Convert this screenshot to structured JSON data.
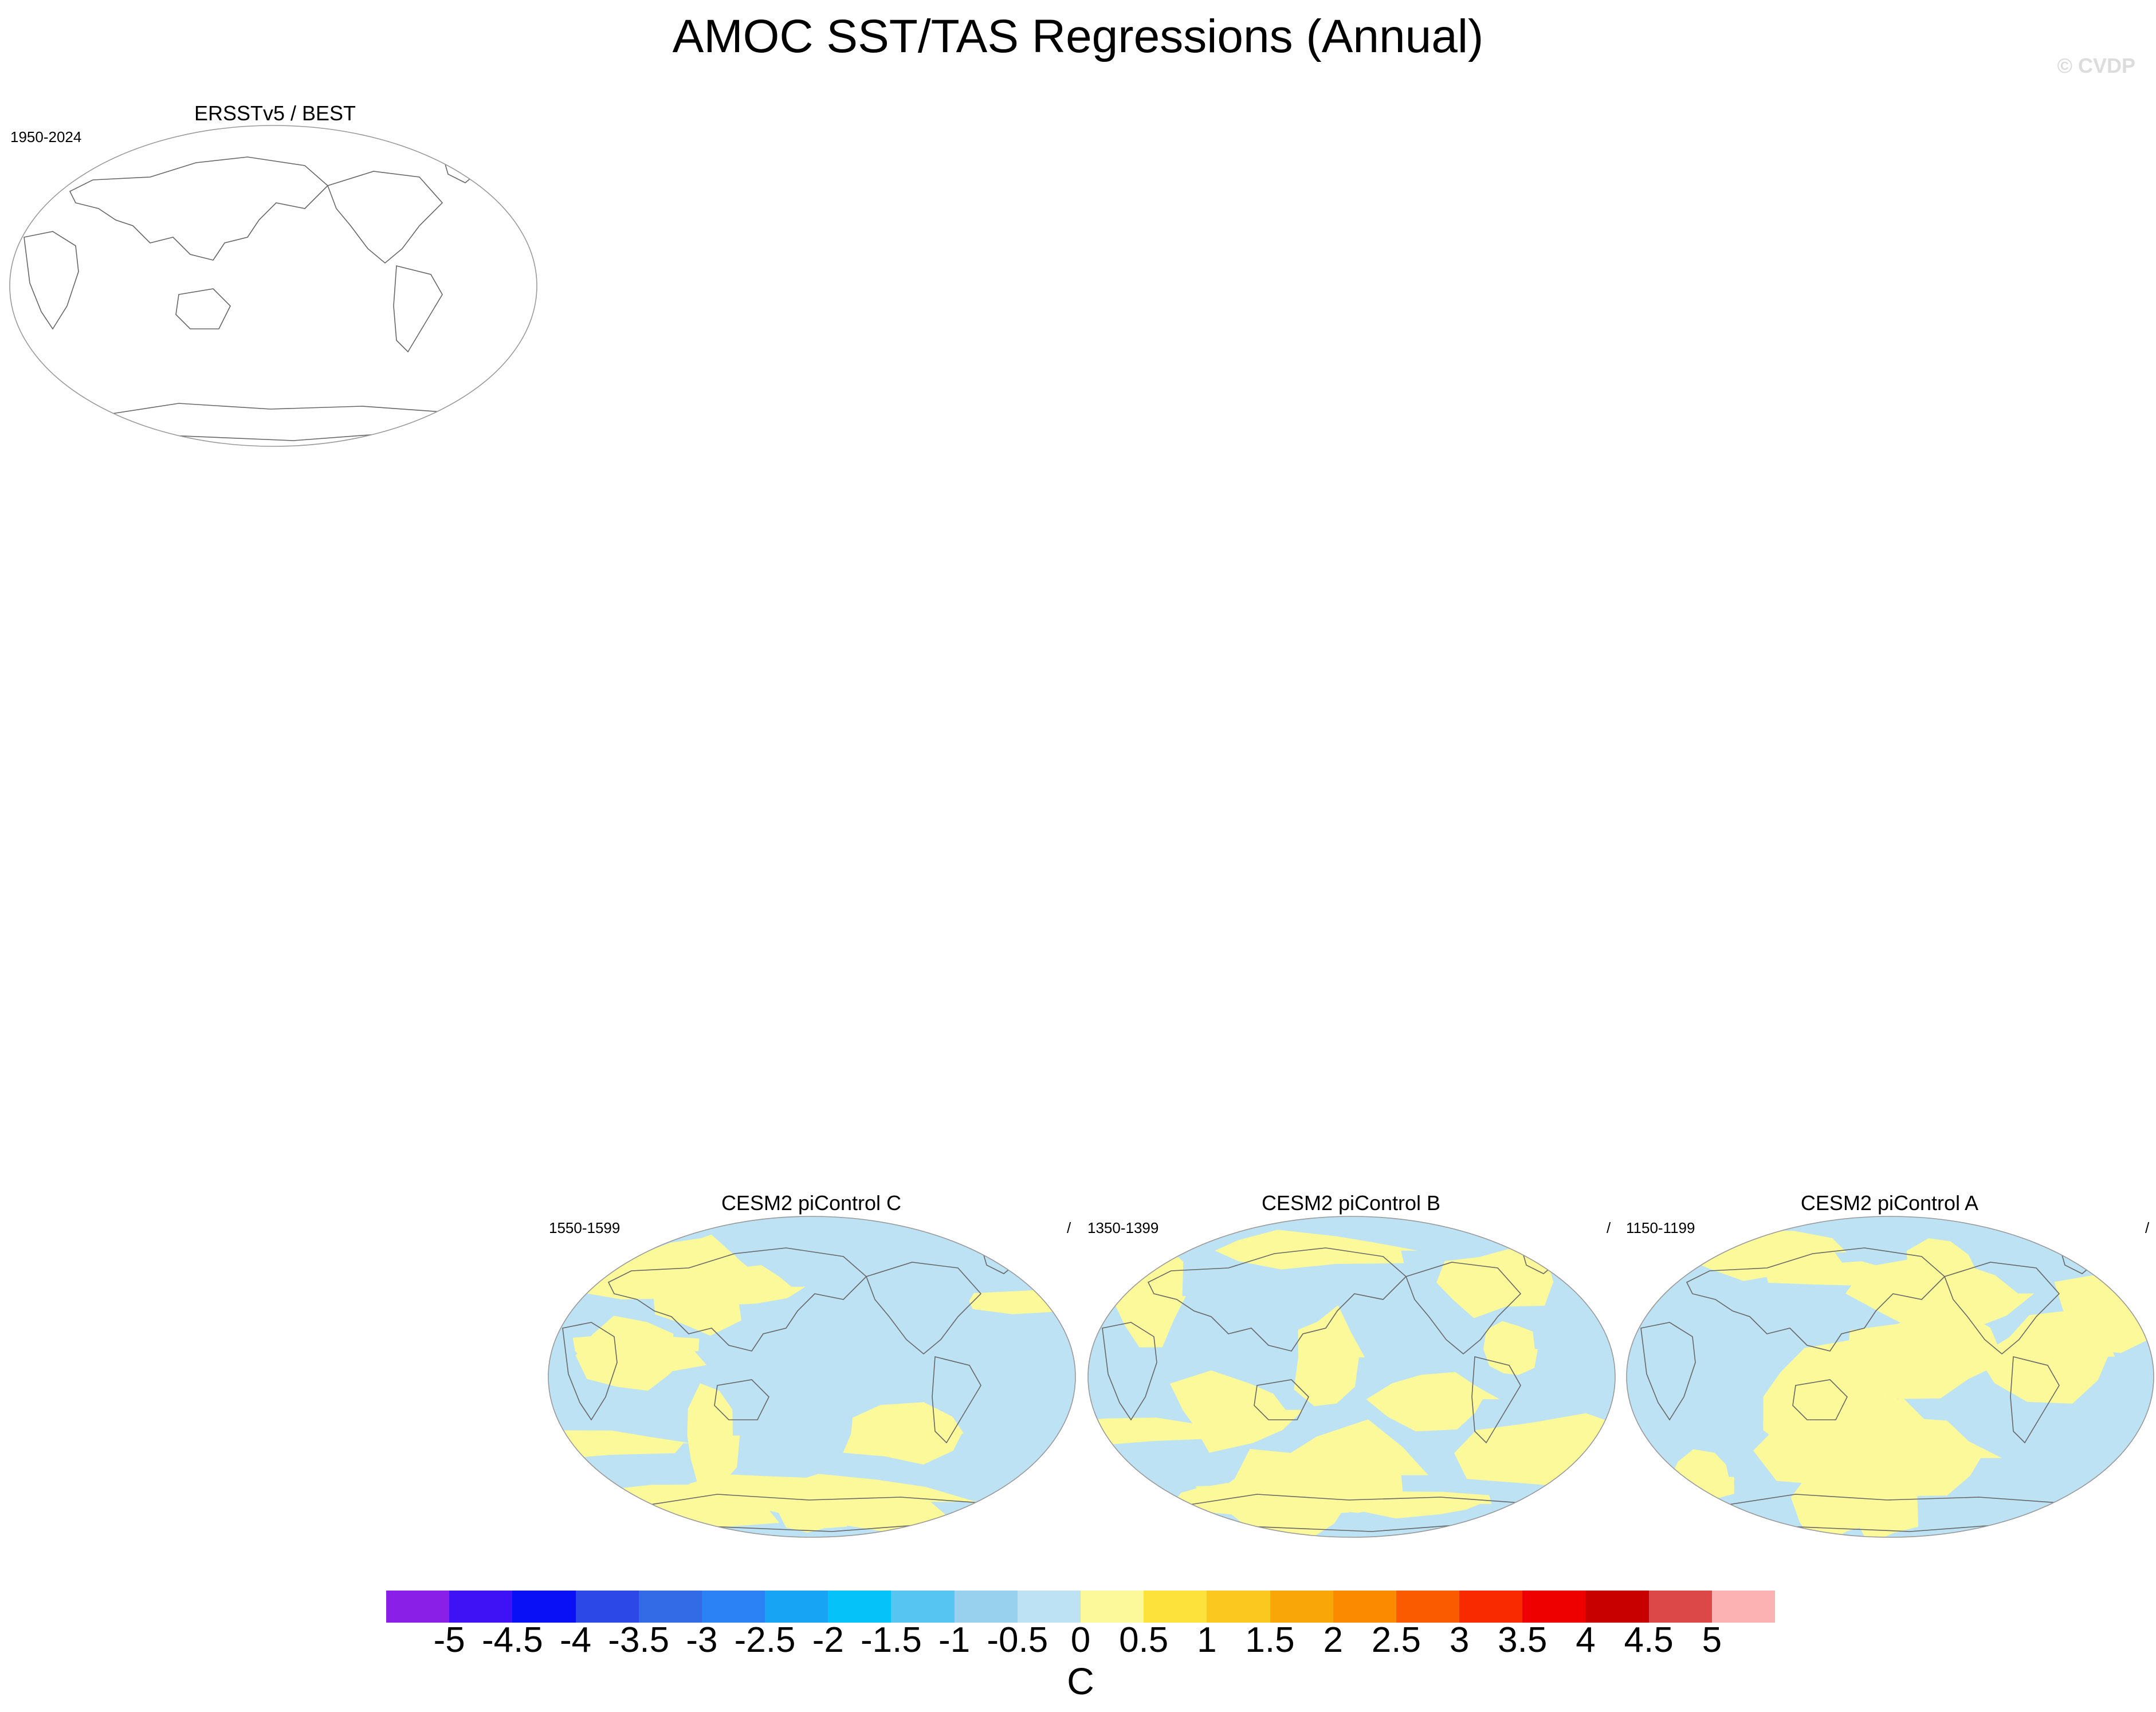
{
  "title": "AMOC SST/TAS Regressions (Annual)",
  "copyright": "© CVDP",
  "panels": [
    {
      "title": "ERSSTv5 / BEST",
      "years": "1950-2024",
      "slash": "",
      "filled": false
    },
    {
      "title": "CESM2 piControl C",
      "years": "1550-1599",
      "slash": "/",
      "filled": true
    },
    {
      "title": "CESM2 piControl B",
      "years": "1350-1399",
      "slash": "/",
      "filled": true
    },
    {
      "title": "CESM2 piControl A",
      "years": "1150-1199",
      "slash": "/",
      "filled": true
    }
  ],
  "chart_data": {
    "type": "heatmap",
    "title": "AMOC SST/TAS Regressions (Annual)",
    "colorbar": {
      "unit": "C",
      "levels": [
        "-5",
        "-4.5",
        "-4",
        "-3.5",
        "-3",
        "-2.5",
        "-2",
        "-1.5",
        "-1",
        "-0.5",
        "0",
        "0.5",
        "1",
        "1.5",
        "2",
        "2.5",
        "3",
        "3.5",
        "4",
        "4.5",
        "5"
      ],
      "colors": [
        "#8a1fe8",
        "#3f12f5",
        "#0a10f5",
        "#2c48e6",
        "#336be6",
        "#2a82f5",
        "#17a4f5",
        "#05c2f8",
        "#57c5f2",
        "#98d1ee",
        "#bde2f4",
        "#fcf99a",
        "#fde23c",
        "#fac81e",
        "#f8a608",
        "#fb8a00",
        "#fa5a00",
        "#fa2a00",
        "#ee0000",
        "#c80000",
        "#dc4848",
        "#fcb2b2"
      ]
    },
    "maps": [
      {
        "name": "ERSSTv5 / BEST",
        "period": "1950-2024",
        "values_shown": false
      },
      {
        "name": "CESM2 piControl C",
        "period": "1550-1599",
        "value_range_shown": [
          "-0.5",
          "0.5"
        ]
      },
      {
        "name": "CESM2 piControl B",
        "period": "1350-1399",
        "value_range_shown": [
          "-0.5",
          "0.5"
        ]
      },
      {
        "name": "CESM2 piControl A",
        "period": "1150-1199",
        "value_range_shown": [
          "-0.5",
          "0.5"
        ]
      }
    ]
  }
}
